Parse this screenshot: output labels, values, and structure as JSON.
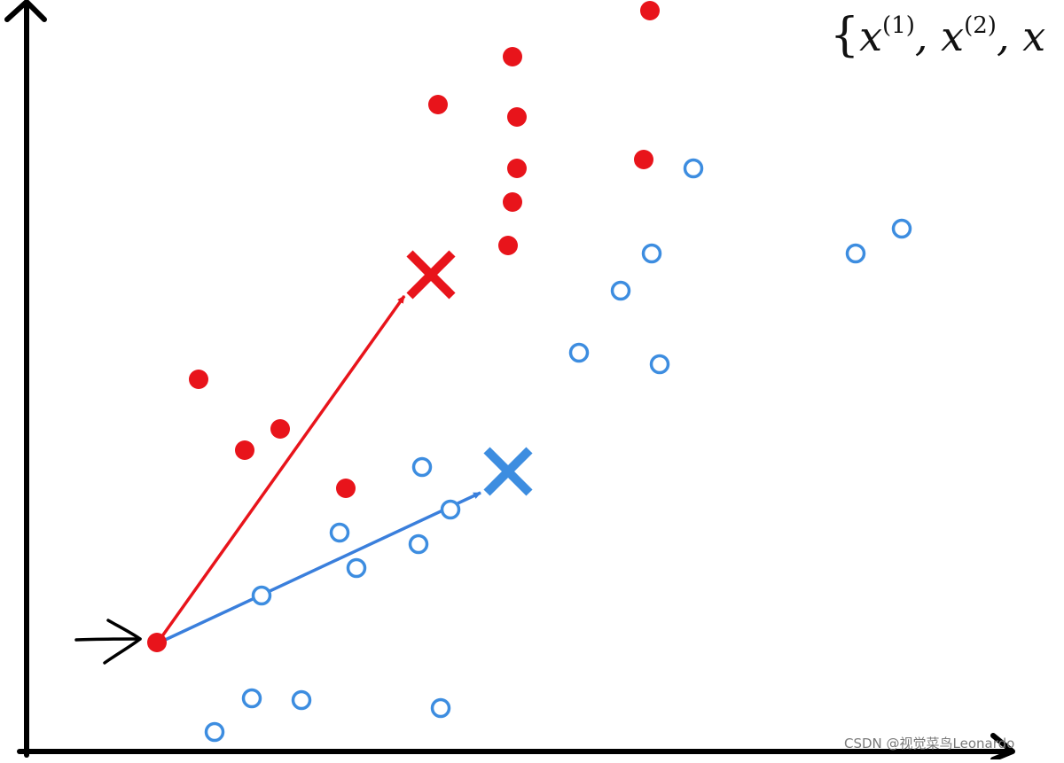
{
  "notation": {
    "open_brace": "{",
    "var": "x",
    "sup1": "(1)",
    "sup2": "(2)",
    "comma": ","
  },
  "watermark": "CSDN @视觉菜鸟Leonardo",
  "colors": {
    "axis": "#000000",
    "red_cluster": "#e8141b",
    "blue_cluster": "#3d8de0",
    "arrow_red": "#e8141b",
    "arrow_blue": "#3a7fdc",
    "pointer": "#000000"
  },
  "icons": {
    "red_points": "filled-circle",
    "blue_points": "hollow-circle",
    "centroids": "x-mark",
    "pointer": "hand-drawn-arrow"
  }
}
